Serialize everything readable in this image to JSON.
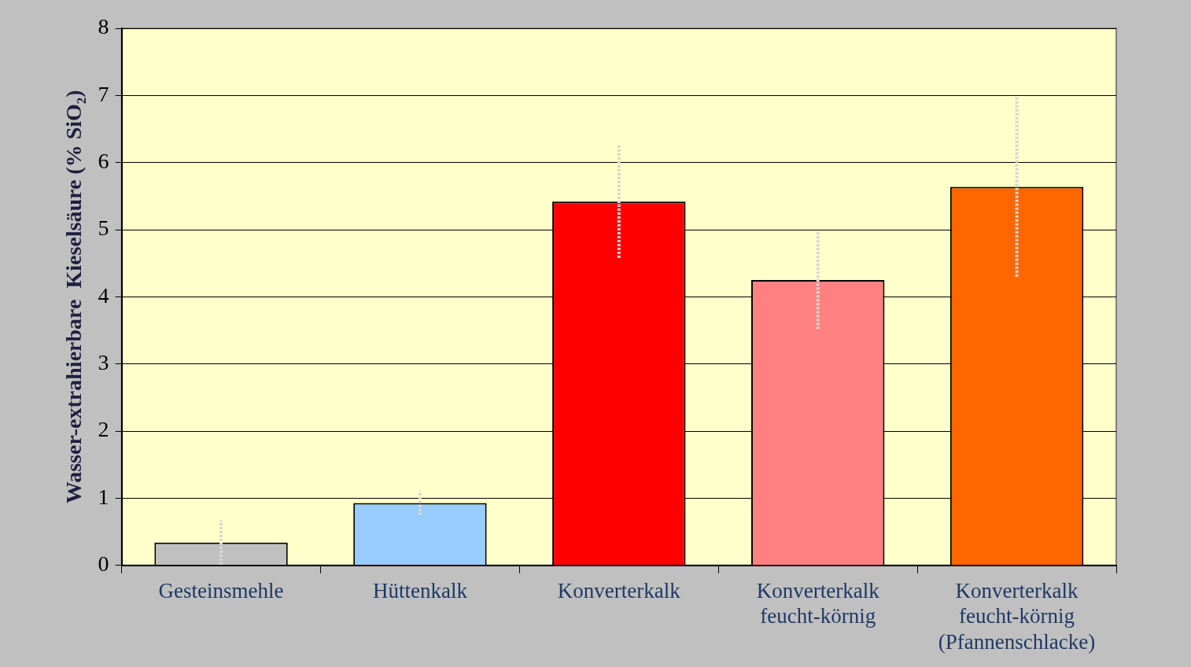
{
  "chart_data": {
    "type": "bar",
    "ylabel": "Wasser-extrahierbare  Kieselsäure (% SiO₂)",
    "categories": [
      "Gesteinsmehle",
      "Hüttenkalk",
      "Konverterkalk",
      "Konverterkalk\nfeucht-körnig",
      "Konverterkalk\nfeucht-körnig\n(Pfannenschlacke)"
    ],
    "values": [
      0.34,
      0.93,
      5.42,
      4.25,
      5.64
    ],
    "colors": [
      "#c0c0c0",
      "#99ccff",
      "#ff0000",
      "#ff8080",
      "#ff6600"
    ],
    "errors": [
      0.33,
      0.18,
      0.84,
      0.73,
      1.34
    ],
    "ylim": [
      0,
      8
    ],
    "yticks": [
      0,
      1,
      2,
      3,
      4,
      5,
      6,
      7,
      8
    ],
    "grid": "y"
  }
}
